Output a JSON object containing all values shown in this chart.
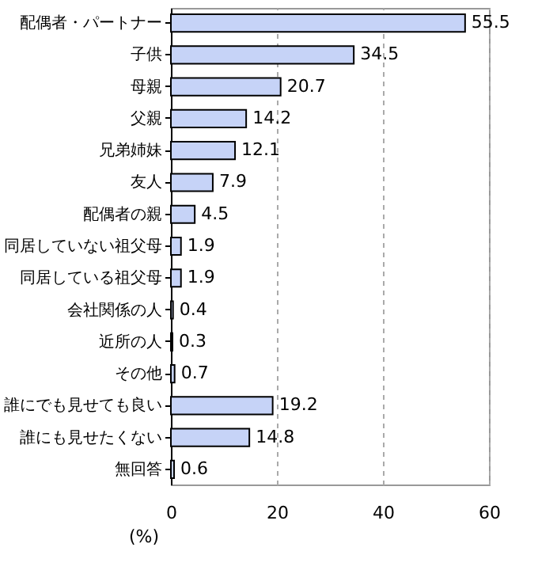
{
  "chart_data": {
    "type": "bar",
    "orientation": "horizontal",
    "xlabel": "(%)",
    "categories": [
      "配偶者・パートナー",
      "子供",
      "母親",
      "父親",
      "兄弟姉妹",
      "友人",
      "配偶者の親",
      "同居していない祖父母",
      "同居している祖父母",
      "会社関係の人",
      "近所の人",
      "その他",
      "誰にでも見せても良い",
      "誰にも見せたくない",
      "無回答"
    ],
    "values": [
      55.5,
      34.5,
      20.7,
      14.2,
      12.1,
      7.9,
      4.5,
      1.9,
      1.9,
      0.4,
      0.3,
      0.7,
      19.2,
      14.8,
      0.6
    ],
    "color": "#c6d3f7",
    "xlim": [
      0,
      60
    ],
    "xticks": [
      0,
      20,
      40,
      60
    ],
    "grid": "x",
    "data_labels": true
  }
}
